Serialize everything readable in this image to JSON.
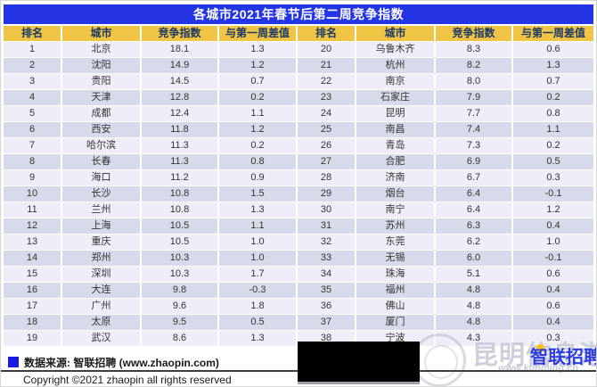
{
  "title": "各城市2021年春节后第二周竞争指数",
  "table": {
    "headers": [
      "排名",
      "城市",
      "竞争指数",
      "与第一周差值",
      "排名",
      "城市",
      "竞争指数",
      "与第一周差值"
    ],
    "rows": [
      {
        "rank_l": "1",
        "city_l": "北京",
        "index_l": "18.1",
        "diff_l": "1.3",
        "rank_r": "20",
        "city_r": "乌鲁木齐",
        "index_r": "8.3",
        "diff_r": "0.6"
      },
      {
        "rank_l": "2",
        "city_l": "沈阳",
        "index_l": "14.9",
        "diff_l": "1.2",
        "rank_r": "21",
        "city_r": "杭州",
        "index_r": "8.2",
        "diff_r": "1.3"
      },
      {
        "rank_l": "3",
        "city_l": "贵阳",
        "index_l": "14.5",
        "diff_l": "0.7",
        "rank_r": "22",
        "city_r": "南京",
        "index_r": "8.0",
        "diff_r": "0.7"
      },
      {
        "rank_l": "4",
        "city_l": "天津",
        "index_l": "12.8",
        "diff_l": "0.2",
        "rank_r": "23",
        "city_r": "石家庄",
        "index_r": "7.9",
        "diff_r": "0.2"
      },
      {
        "rank_l": "5",
        "city_l": "成都",
        "index_l": "12.4",
        "diff_l": "1.1",
        "rank_r": "24",
        "city_r": "昆明",
        "index_r": "7.7",
        "diff_r": "0.8"
      },
      {
        "rank_l": "6",
        "city_l": "西安",
        "index_l": "11.8",
        "diff_l": "1.2",
        "rank_r": "25",
        "city_r": "南昌",
        "index_r": "7.4",
        "diff_r": "1.1"
      },
      {
        "rank_l": "7",
        "city_l": "哈尔滨",
        "index_l": "11.3",
        "diff_l": "0.2",
        "rank_r": "26",
        "city_r": "青岛",
        "index_r": "7.3",
        "diff_r": "0.2"
      },
      {
        "rank_l": "8",
        "city_l": "长春",
        "index_l": "11.3",
        "diff_l": "0.8",
        "rank_r": "27",
        "city_r": "合肥",
        "index_r": "6.9",
        "diff_r": "0.5"
      },
      {
        "rank_l": "9",
        "city_l": "海口",
        "index_l": "11.2",
        "diff_l": "0.9",
        "rank_r": "28",
        "city_r": "济南",
        "index_r": "6.7",
        "diff_r": "0.3"
      },
      {
        "rank_l": "10",
        "city_l": "长沙",
        "index_l": "10.8",
        "diff_l": "1.5",
        "rank_r": "29",
        "city_r": "烟台",
        "index_r": "6.4",
        "diff_r": "-0.1"
      },
      {
        "rank_l": "11",
        "city_l": "兰州",
        "index_l": "10.8",
        "diff_l": "1.3",
        "rank_r": "30",
        "city_r": "南宁",
        "index_r": "6.4",
        "diff_r": "1.2"
      },
      {
        "rank_l": "12",
        "city_l": "上海",
        "index_l": "10.5",
        "diff_l": "1.1",
        "rank_r": "31",
        "city_r": "苏州",
        "index_r": "6.3",
        "diff_r": "0.4"
      },
      {
        "rank_l": "13",
        "city_l": "重庆",
        "index_l": "10.5",
        "diff_l": "1.0",
        "rank_r": "32",
        "city_r": "东莞",
        "index_r": "6.2",
        "diff_r": "1.0"
      },
      {
        "rank_l": "14",
        "city_l": "郑州",
        "index_l": "10.3",
        "diff_l": "1.0",
        "rank_r": "33",
        "city_r": "无锡",
        "index_r": "6.0",
        "diff_r": "-0.1"
      },
      {
        "rank_l": "15",
        "city_l": "深圳",
        "index_l": "10.3",
        "diff_l": "1.7",
        "rank_r": "34",
        "city_r": "珠海",
        "index_r": "5.1",
        "diff_r": "0.6"
      },
      {
        "rank_l": "16",
        "city_l": "大连",
        "index_l": "9.8",
        "diff_l": "-0.3",
        "rank_r": "35",
        "city_r": "福州",
        "index_r": "4.8",
        "diff_r": "0.4"
      },
      {
        "rank_l": "17",
        "city_l": "广州",
        "index_l": "9.6",
        "diff_l": "1.8",
        "rank_r": "36",
        "city_r": "佛山",
        "index_r": "4.8",
        "diff_r": "0.6"
      },
      {
        "rank_l": "18",
        "city_l": "太原",
        "index_l": "9.5",
        "diff_l": "0.5",
        "rank_r": "37",
        "city_r": "厦门",
        "index_r": "4.8",
        "diff_r": "0.4"
      },
      {
        "rank_l": "19",
        "city_l": "武汉",
        "index_l": "8.6",
        "diff_l": "1.3",
        "rank_r": "38",
        "city_r": "宁波",
        "index_r": "4.3",
        "diff_r": "0.3"
      }
    ]
  },
  "footer": {
    "source_label": "数据来源: 智联招聘 (www.zhaopin.com)",
    "copyright": "Copyright ©2021 zhaopin all rights reserved"
  },
  "watermark": {
    "site_name": "昆明信息港",
    "site_url": "www.kunming.cn"
  },
  "logo": {
    "brand": "智联招聘"
  },
  "colors": {
    "title_bar": "#2335e4",
    "header_bg": "#f0c444",
    "header_text": "#1b3a68",
    "row_odd": "#edeef7",
    "row_even": "#d7daeb",
    "source_marker": "#1a1ae6",
    "logo_blue": "#2b3be0",
    "logo_yellow": "#ffc20e"
  },
  "chart_data": {
    "type": "table",
    "title": "各城市2021年春节后第二周竞争指数",
    "columns": [
      "排名",
      "城市",
      "竞争指数",
      "与第一周差值"
    ],
    "rows": [
      [
        1,
        "北京",
        18.1,
        1.3
      ],
      [
        2,
        "沈阳",
        14.9,
        1.2
      ],
      [
        3,
        "贵阳",
        14.5,
        0.7
      ],
      [
        4,
        "天津",
        12.8,
        0.2
      ],
      [
        5,
        "成都",
        12.4,
        1.1
      ],
      [
        6,
        "西安",
        11.8,
        1.2
      ],
      [
        7,
        "哈尔滨",
        11.3,
        0.2
      ],
      [
        8,
        "长春",
        11.3,
        0.8
      ],
      [
        9,
        "海口",
        11.2,
        0.9
      ],
      [
        10,
        "长沙",
        10.8,
        1.5
      ],
      [
        11,
        "兰州",
        10.8,
        1.3
      ],
      [
        12,
        "上海",
        10.5,
        1.1
      ],
      [
        13,
        "重庆",
        10.5,
        1.0
      ],
      [
        14,
        "郑州",
        10.3,
        1.0
      ],
      [
        15,
        "深圳",
        10.3,
        1.7
      ],
      [
        16,
        "大连",
        9.8,
        -0.3
      ],
      [
        17,
        "广州",
        9.6,
        1.8
      ],
      [
        18,
        "太原",
        9.5,
        0.5
      ],
      [
        19,
        "武汉",
        8.6,
        1.3
      ],
      [
        20,
        "乌鲁木齐",
        8.3,
        0.6
      ],
      [
        21,
        "杭州",
        8.2,
        1.3
      ],
      [
        22,
        "南京",
        8.0,
        0.7
      ],
      [
        23,
        "石家庄",
        7.9,
        0.2
      ],
      [
        24,
        "昆明",
        7.7,
        0.8
      ],
      [
        25,
        "南昌",
        7.4,
        1.1
      ],
      [
        26,
        "青岛",
        7.3,
        0.2
      ],
      [
        27,
        "合肥",
        6.9,
        0.5
      ],
      [
        28,
        "济南",
        6.7,
        0.3
      ],
      [
        29,
        "烟台",
        6.4,
        -0.1
      ],
      [
        30,
        "南宁",
        6.4,
        1.2
      ],
      [
        31,
        "苏州",
        6.3,
        0.4
      ],
      [
        32,
        "东莞",
        6.2,
        1.0
      ],
      [
        33,
        "无锡",
        6.0,
        -0.1
      ],
      [
        34,
        "珠海",
        5.1,
        0.6
      ],
      [
        35,
        "福州",
        4.8,
        0.4
      ],
      [
        36,
        "佛山",
        4.8,
        0.6
      ],
      [
        37,
        "厦门",
        4.8,
        0.4
      ],
      [
        38,
        "宁波",
        4.3,
        0.3
      ]
    ],
    "source": "数据来源: 智联招聘 (www.zhaopin.com)"
  }
}
